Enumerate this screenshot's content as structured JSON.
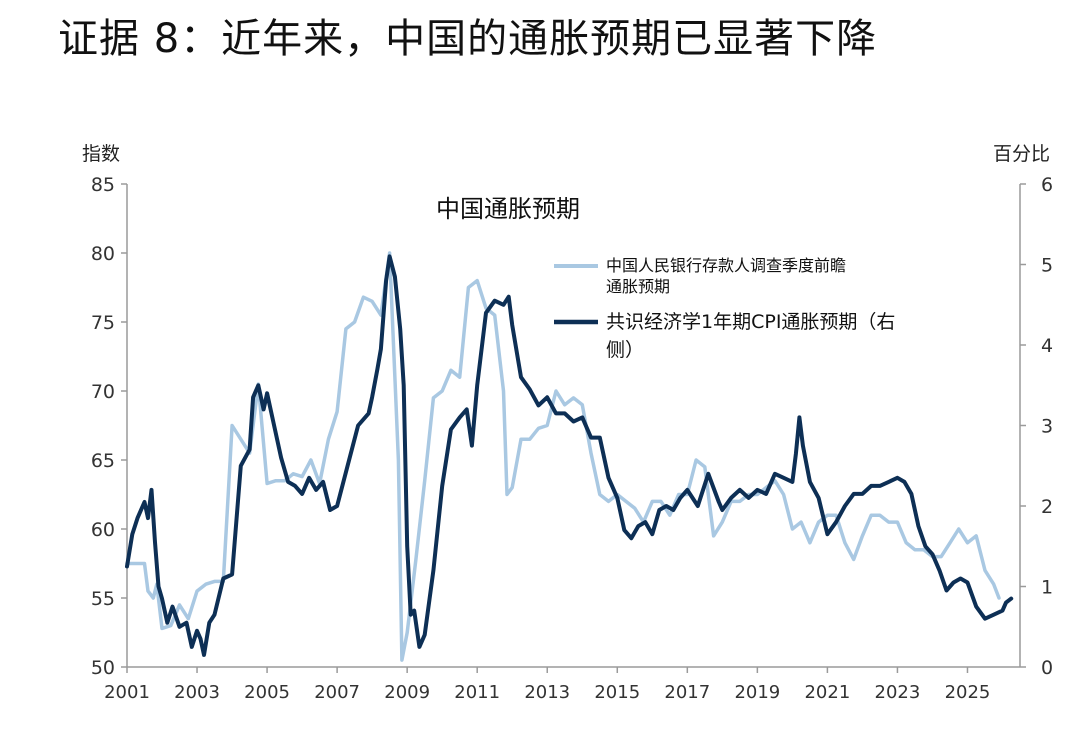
{
  "page_title": "证据 8：近年来，中国的通胀预期已显著下降",
  "chart_data": {
    "type": "line",
    "title": "中国通胀预期",
    "y_left_label": "指数",
    "y_right_label": "百分比",
    "y_left_lim": [
      50,
      85
    ],
    "y_right_lim": [
      0,
      6
    ],
    "y_left_ticks": [
      "85",
      "80",
      "75",
      "70",
      "65",
      "60",
      "55",
      "50"
    ],
    "y_right_ticks": [
      "6",
      "5",
      "4",
      "3",
      "2",
      "1",
      "0"
    ],
    "x_lim": [
      2001,
      2026.5
    ],
    "x_ticks": [
      "2001",
      "2003",
      "2005",
      "2007",
      "2009",
      "2011",
      "2013",
      "2015",
      "2017",
      "2019",
      "2021",
      "2023",
      "2025"
    ],
    "grid": false,
    "legend_position": "top-right",
    "series": [
      {
        "name": "中国人民银行存款人调查季度前瞻通胀预期",
        "axis": "left",
        "color": "#a9c8e2",
        "stroke_width": 3.5,
        "x": [
          2001.0,
          2001.5,
          2001.6,
          2001.75,
          2001.85,
          2002.0,
          2002.25,
          2002.5,
          2002.75,
          2003.0,
          2003.25,
          2003.5,
          2003.75,
          2004.0,
          2004.5,
          2004.75,
          2005.0,
          2005.25,
          2005.5,
          2005.75,
          2006.0,
          2006.25,
          2006.5,
          2006.75,
          2007.0,
          2007.25,
          2007.5,
          2007.75,
          2008.0,
          2008.25,
          2008.5,
          2008.75,
          2008.85,
          2009.0,
          2009.25,
          2009.5,
          2009.75,
          2010.0,
          2010.25,
          2010.5,
          2010.75,
          2011.0,
          2011.25,
          2011.5,
          2011.75,
          2011.85,
          2012.0,
          2012.25,
          2012.5,
          2012.75,
          2013.0,
          2013.25,
          2013.5,
          2013.75,
          2014.0,
          2014.25,
          2014.5,
          2014.75,
          2015.0,
          2015.25,
          2015.5,
          2015.75,
          2016.0,
          2016.25,
          2016.5,
          2016.75,
          2017.0,
          2017.25,
          2017.5,
          2017.75,
          2018.0,
          2018.25,
          2018.5,
          2018.75,
          2019.0,
          2019.25,
          2019.5,
          2019.75,
          2020.0,
          2020.25,
          2020.5,
          2020.75,
          2021.0,
          2021.25,
          2021.5,
          2021.75,
          2022.0,
          2022.25,
          2022.5,
          2022.75,
          2023.0,
          2023.25,
          2023.5,
          2023.75,
          2024.0,
          2024.25,
          2024.5,
          2024.75,
          2025.0,
          2025.25,
          2025.5,
          2025.75,
          2025.9
        ],
        "values": [
          57.5,
          57.5,
          55.5,
          55.0,
          56.0,
          52.8,
          53.0,
          54.5,
          53.5,
          55.5,
          56.0,
          56.2,
          56.2,
          67.5,
          65.5,
          70.5,
          63.3,
          63.5,
          63.5,
          64.0,
          63.8,
          65.0,
          63.3,
          66.5,
          68.5,
          74.5,
          75.0,
          76.8,
          76.5,
          75.5,
          80.0,
          65.0,
          50.5,
          52.5,
          57.8,
          63.5,
          69.5,
          70.0,
          71.5,
          71.0,
          77.5,
          78.0,
          76.0,
          75.5,
          70.0,
          62.5,
          63.0,
          66.5,
          66.5,
          67.3,
          67.5,
          70.0,
          69.0,
          69.5,
          69.0,
          65.5,
          62.5,
          62.0,
          62.5,
          62.0,
          61.5,
          60.5,
          62.0,
          62.0,
          61.0,
          62.5,
          62.5,
          65.0,
          64.5,
          59.5,
          60.5,
          62.0,
          62.0,
          62.5,
          62.5,
          63.0,
          63.5,
          62.5,
          60.0,
          60.5,
          59.0,
          60.5,
          61.0,
          61.0,
          59.0,
          57.8,
          59.5,
          61.0,
          61.0,
          60.5,
          60.5,
          59.0,
          58.5,
          58.5,
          58.0,
          58.0,
          59.0,
          60.0,
          59.0,
          59.5,
          57.0,
          56.0,
          55.0
        ]
      },
      {
        "name": "共识经济学1年期CPI通胀预期（右侧）",
        "axis": "right",
        "color": "#0d2f55",
        "stroke_width": 4,
        "x": [
          2001.0,
          2001.15,
          2001.3,
          2001.5,
          2001.6,
          2001.7,
          2001.8,
          2001.9,
          2002.0,
          2002.15,
          2002.3,
          2002.5,
          2002.7,
          2002.85,
          2003.0,
          2003.1,
          2003.2,
          2003.35,
          2003.5,
          2003.75,
          2004.0,
          2004.25,
          2004.5,
          2004.6,
          2004.75,
          2004.9,
          2005.0,
          2005.2,
          2005.4,
          2005.6,
          2005.8,
          2006.0,
          2006.2,
          2006.4,
          2006.6,
          2006.8,
          2007.0,
          2007.3,
          2007.6,
          2007.9,
          2008.0,
          2008.15,
          2008.25,
          2008.4,
          2008.5,
          2008.65,
          2008.8,
          2008.9,
          2009.0,
          2009.1,
          2009.2,
          2009.35,
          2009.5,
          2009.75,
          2010.0,
          2010.25,
          2010.5,
          2010.7,
          2010.85,
          2011.0,
          2011.25,
          2011.5,
          2011.75,
          2011.9,
          2012.0,
          2012.25,
          2012.5,
          2012.75,
          2013.0,
          2013.25,
          2013.5,
          2013.75,
          2014.0,
          2014.25,
          2014.5,
          2014.75,
          2015.0,
          2015.2,
          2015.4,
          2015.6,
          2015.8,
          2016.0,
          2016.2,
          2016.4,
          2016.6,
          2016.8,
          2017.0,
          2017.3,
          2017.6,
          2017.9,
          2018.0,
          2018.25,
          2018.5,
          2018.75,
          2019.0,
          2019.25,
          2019.5,
          2019.75,
          2020.0,
          2020.1,
          2020.2,
          2020.3,
          2020.5,
          2020.75,
          2021.0,
          2021.25,
          2021.5,
          2021.75,
          2022.0,
          2022.25,
          2022.5,
          2022.75,
          2023.0,
          2023.2,
          2023.4,
          2023.6,
          2023.8,
          2024.0,
          2024.2,
          2024.4,
          2024.6,
          2024.8,
          2025.0,
          2025.25,
          2025.5,
          2025.75,
          2026.0,
          2026.1,
          2026.25
        ],
        "values": [
          1.25,
          1.65,
          1.85,
          2.05,
          1.85,
          2.2,
          1.55,
          1.0,
          0.85,
          0.55,
          0.75,
          0.5,
          0.55,
          0.25,
          0.45,
          0.35,
          0.15,
          0.55,
          0.65,
          1.1,
          1.15,
          2.5,
          2.7,
          3.35,
          3.5,
          3.2,
          3.4,
          3.0,
          2.6,
          2.3,
          2.25,
          2.15,
          2.35,
          2.2,
          2.3,
          1.95,
          2.0,
          2.5,
          3.0,
          3.15,
          3.35,
          3.7,
          3.95,
          4.8,
          5.1,
          4.85,
          4.2,
          3.5,
          1.5,
          0.65,
          0.7,
          0.25,
          0.4,
          1.2,
          2.25,
          2.95,
          3.1,
          3.2,
          2.75,
          3.5,
          4.4,
          4.55,
          4.5,
          4.6,
          4.25,
          3.6,
          3.45,
          3.25,
          3.35,
          3.15,
          3.15,
          3.05,
          3.1,
          2.85,
          2.85,
          2.35,
          2.1,
          1.7,
          1.6,
          1.75,
          1.8,
          1.65,
          1.95,
          2.0,
          1.95,
          2.1,
          2.2,
          2.0,
          2.4,
          2.05,
          1.95,
          2.1,
          2.2,
          2.1,
          2.2,
          2.15,
          2.4,
          2.35,
          2.3,
          2.65,
          3.1,
          2.75,
          2.3,
          2.1,
          1.65,
          1.8,
          2.0,
          2.15,
          2.15,
          2.25,
          2.25,
          2.3,
          2.35,
          2.3,
          2.15,
          1.75,
          1.5,
          1.4,
          1.2,
          0.95,
          1.05,
          1.1,
          1.05,
          0.75,
          0.6,
          0.65,
          0.7,
          0.8,
          0.85
        ]
      }
    ]
  }
}
